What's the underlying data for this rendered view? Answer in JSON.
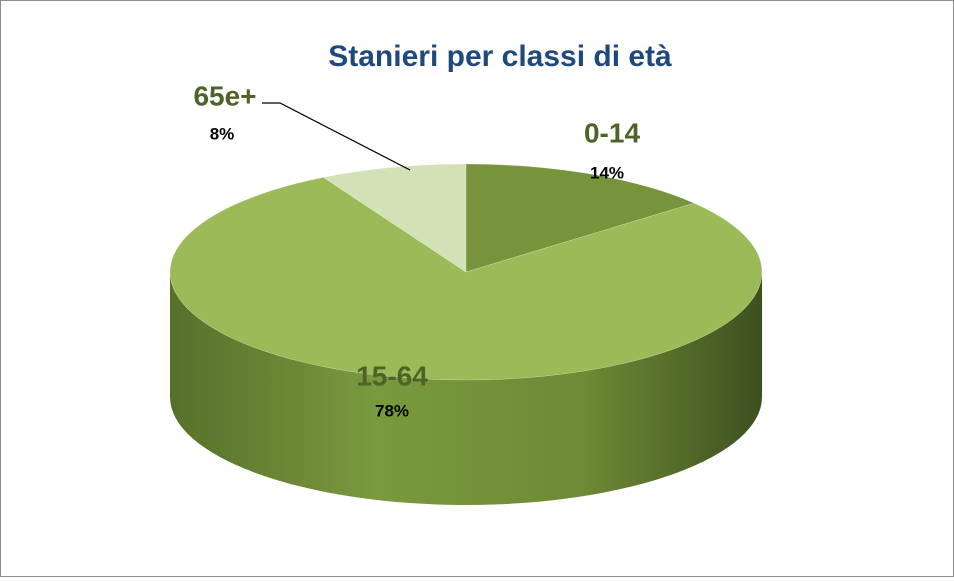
{
  "chart_data": {
    "type": "pie",
    "title": "Stanieri per classi di età",
    "categories": [
      "0-14",
      "15-64",
      "65e+"
    ],
    "values": [
      14,
      78,
      8
    ],
    "value_labels": [
      "14%",
      "78%",
      "8%"
    ],
    "colors": [
      "#77933c",
      "#9bbb59",
      "#d3e2b6"
    ]
  }
}
